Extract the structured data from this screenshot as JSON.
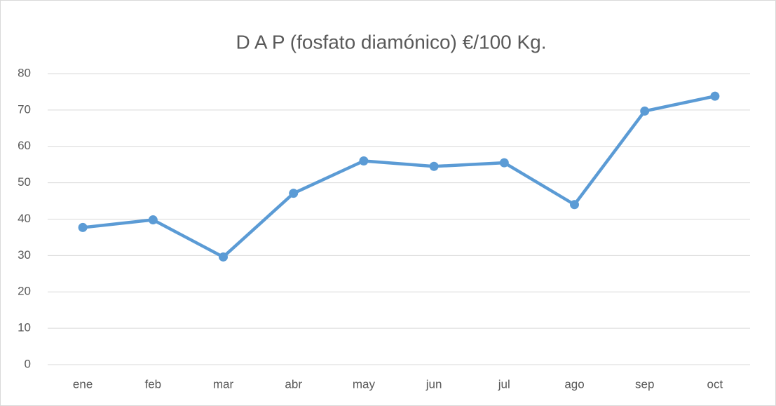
{
  "chart_data": {
    "type": "line",
    "title": "D A P (fosfato diamónico) €/100 Kg.",
    "categories": [
      "ene",
      "feb",
      "mar",
      "abr",
      "may",
      "jun",
      "jul",
      "ago",
      "sep",
      "oct"
    ],
    "series": [
      {
        "name": "D A P",
        "color": "#5b9bd5",
        "values": [
          37.7,
          39.8,
          29.6,
          47.1,
          56.0,
          54.5,
          55.5,
          44.0,
          69.7,
          73.8
        ]
      }
    ],
    "ylim": [
      0,
      80
    ],
    "yticks": [
      0,
      10,
      20,
      30,
      40,
      50,
      60,
      70,
      80
    ],
    "grid": true
  }
}
